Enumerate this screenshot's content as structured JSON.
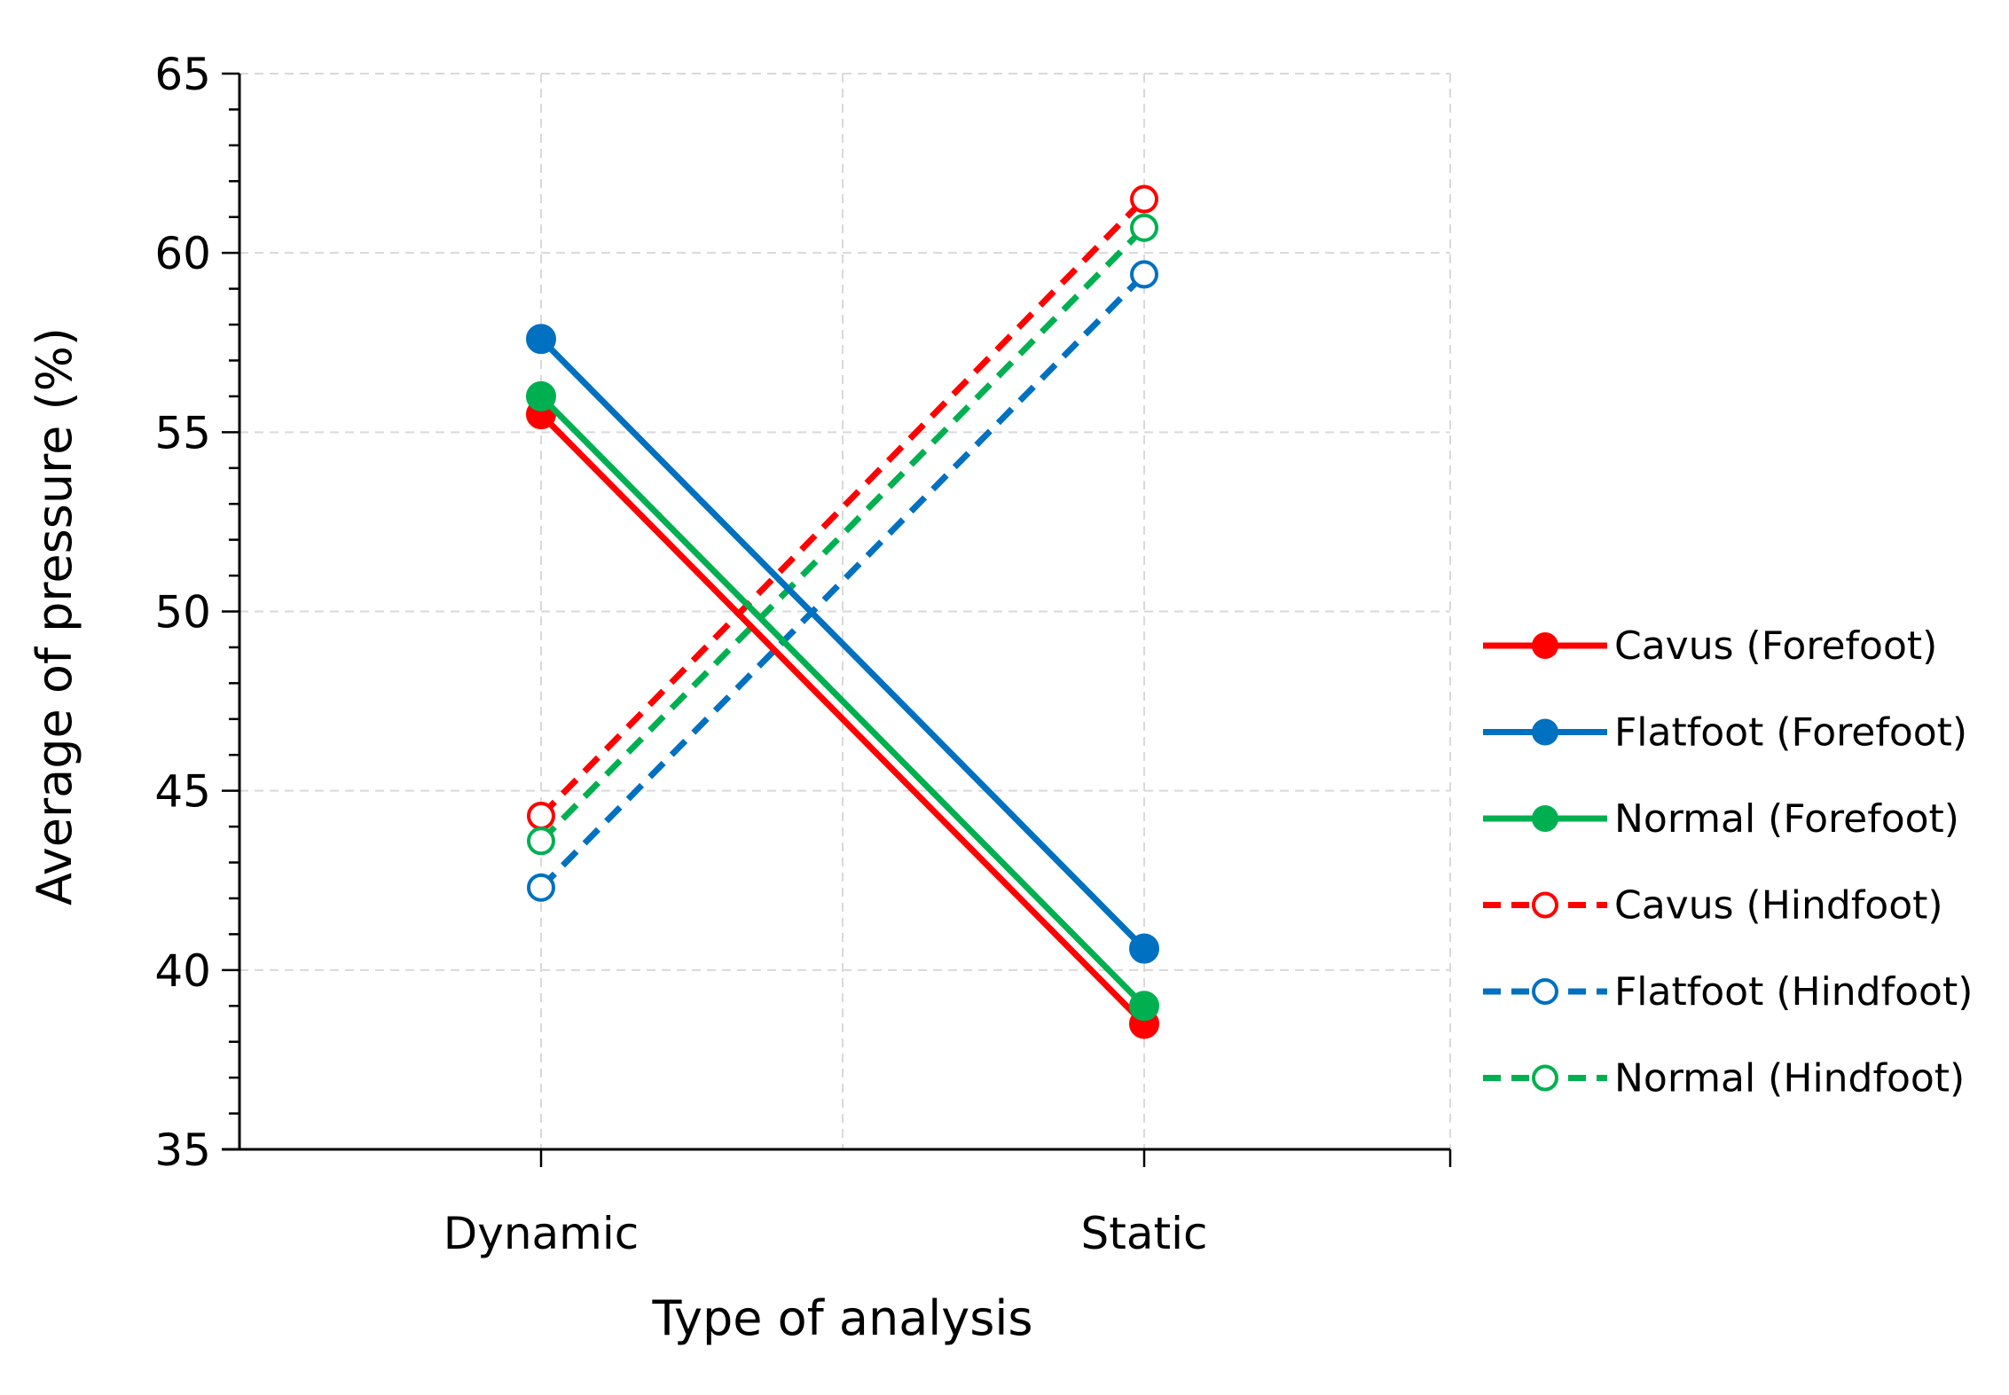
{
  "chart_data": {
    "type": "line",
    "title": "",
    "xlabel": "Type of analysis",
    "ylabel": "Average of pressure (%)",
    "categories": [
      "Dynamic",
      "Static"
    ],
    "ylim": [
      35,
      65
    ],
    "yticks": [
      "35",
      "40",
      "45",
      "50",
      "55",
      "60",
      "65"
    ],
    "grid": true,
    "legend_position": "right",
    "series": [
      {
        "name": "Cavus (Forefoot)",
        "values": [
          55.5,
          38.5
        ],
        "color": "#ff0000",
        "style": "solid",
        "marker": "filled"
      },
      {
        "name": "Flatfoot (Forefoot)",
        "values": [
          57.6,
          40.6
        ],
        "color": "#0070c0",
        "style": "solid",
        "marker": "filled"
      },
      {
        "name": "Normal (Forefoot)",
        "values": [
          56.0,
          39.0
        ],
        "color": "#00b050",
        "style": "solid",
        "marker": "filled"
      },
      {
        "name": "Cavus (Hindfoot)",
        "values": [
          44.3,
          61.5
        ],
        "color": "#ff0000",
        "style": "dashed",
        "marker": "open"
      },
      {
        "name": "Flatfoot (Hindfoot)",
        "values": [
          42.3,
          59.4
        ],
        "color": "#0070c0",
        "style": "dashed",
        "marker": "open"
      },
      {
        "name": "Normal (Hindfoot)",
        "values": [
          43.6,
          60.7
        ],
        "color": "#00b050",
        "style": "dashed",
        "marker": "open"
      }
    ]
  }
}
